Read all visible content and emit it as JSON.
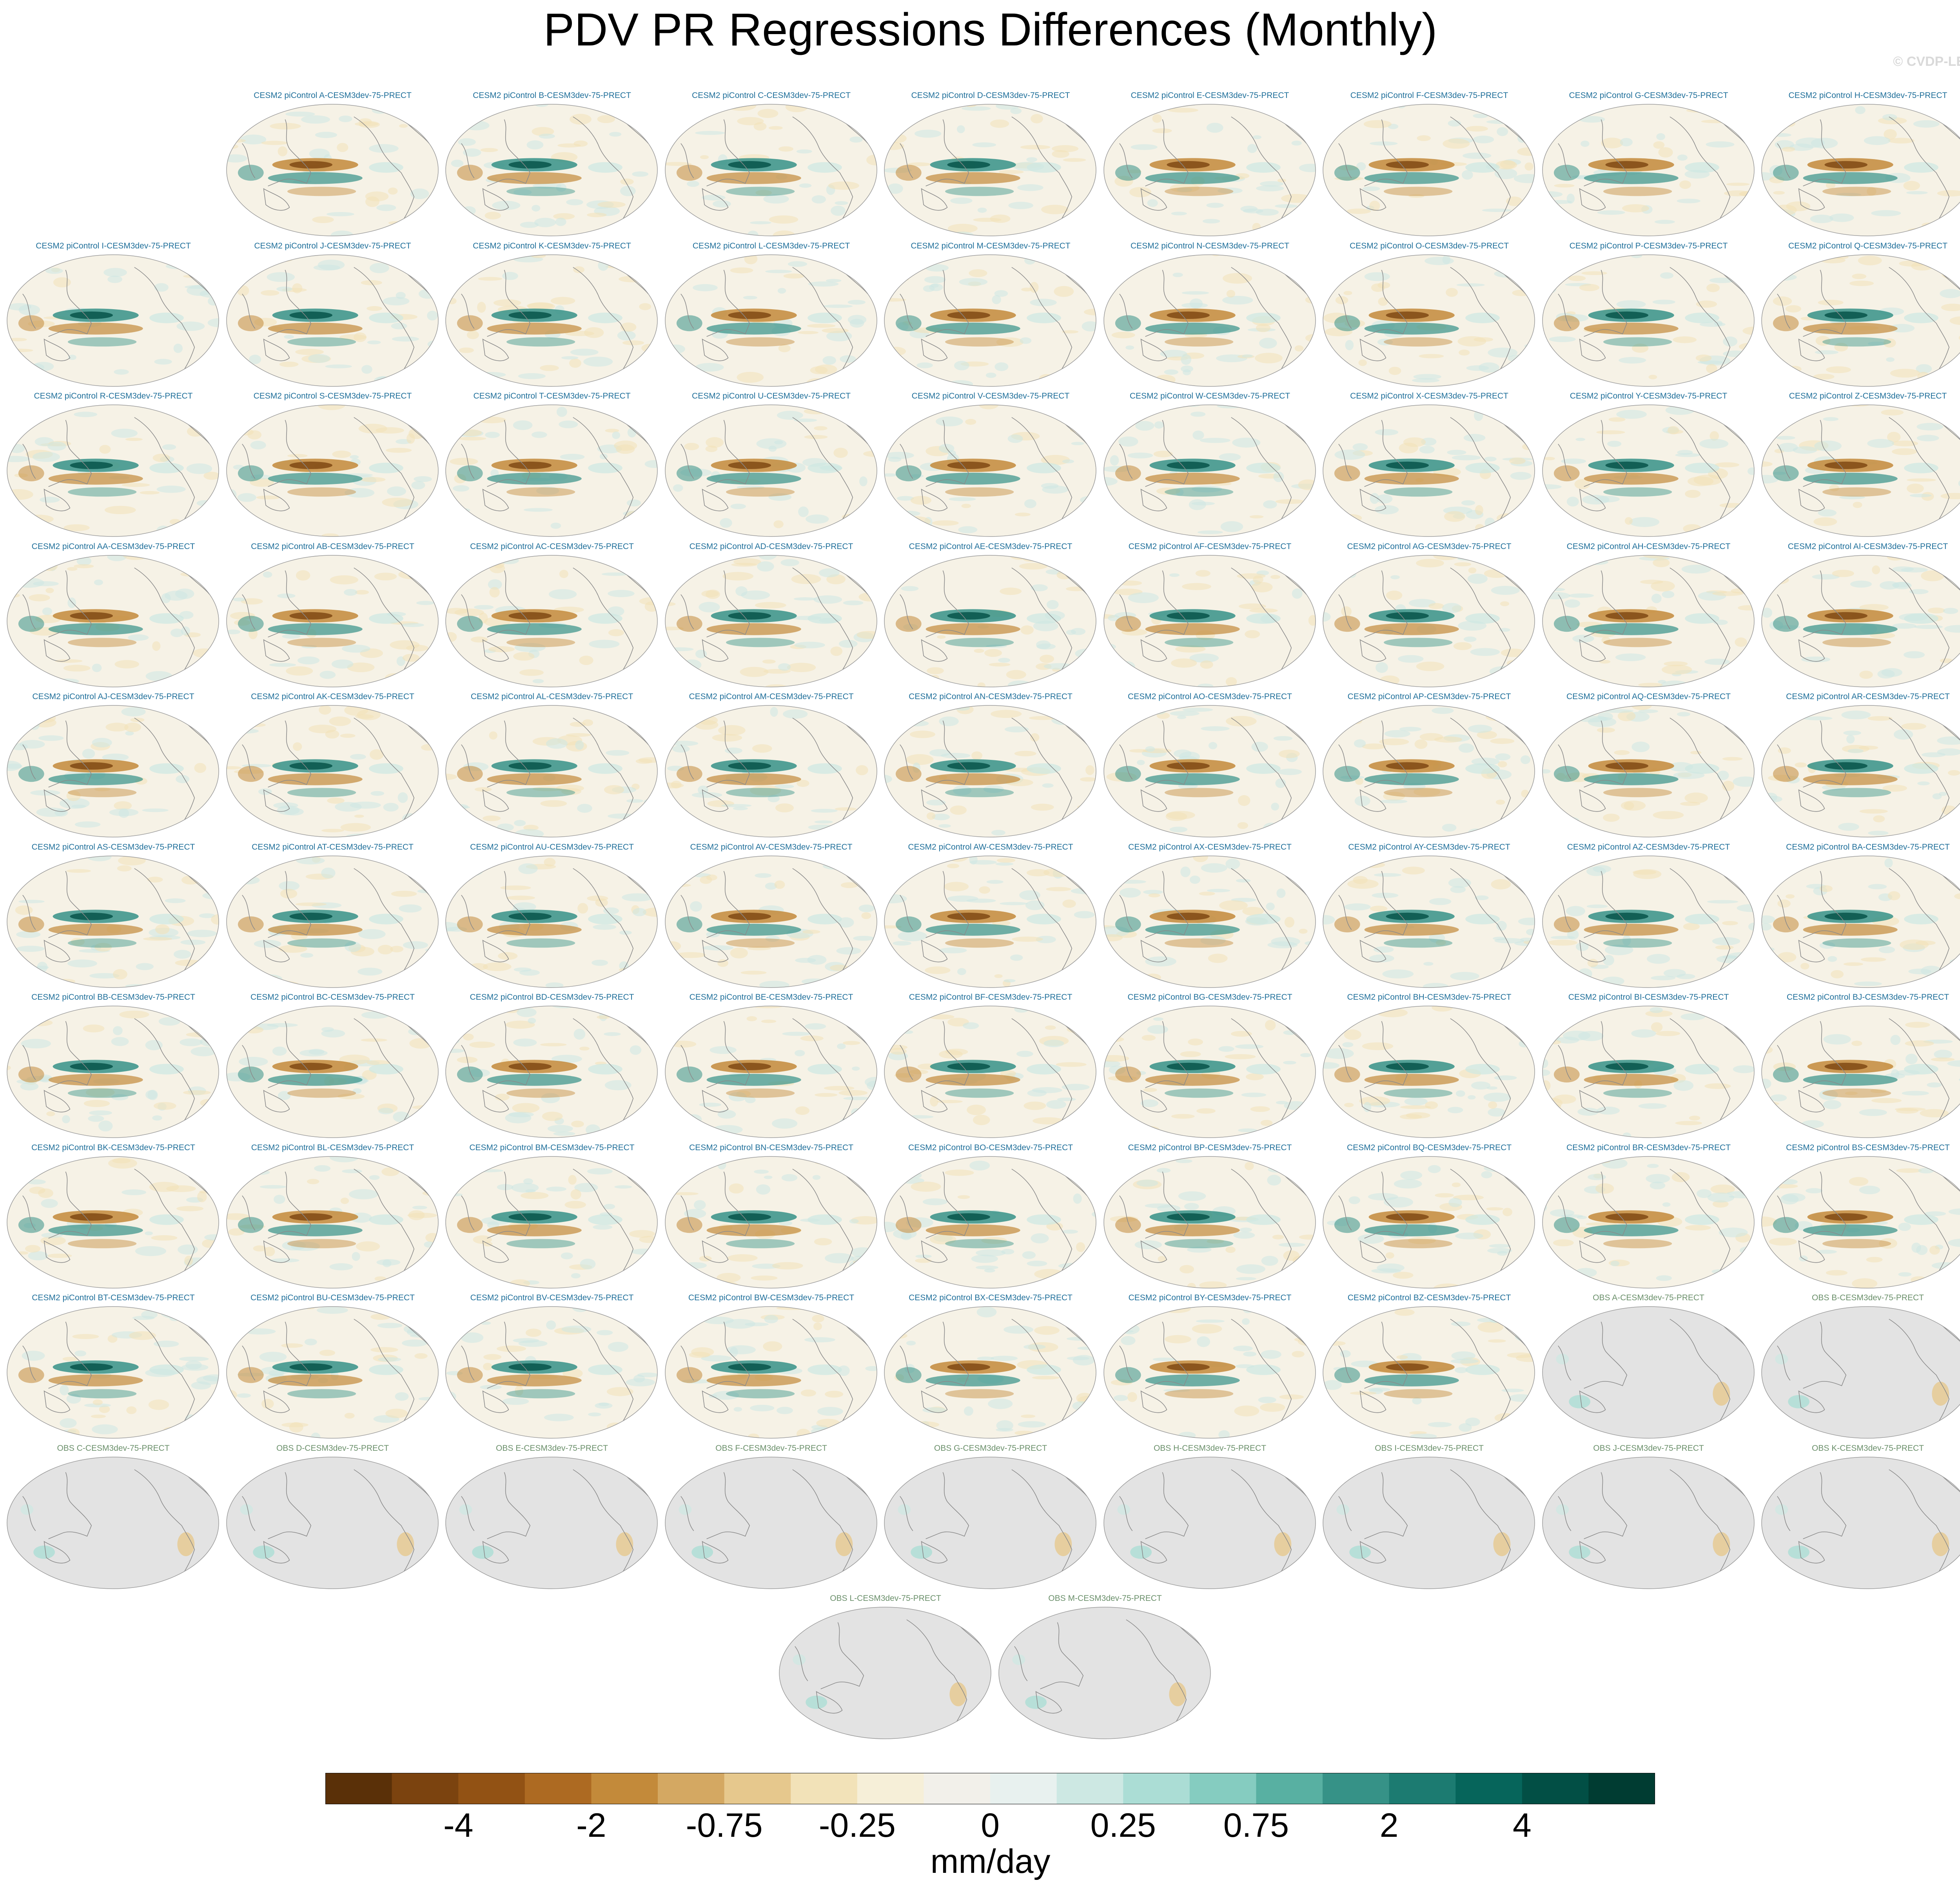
{
  "title": "PDV PR Regressions Differences (Monthly)",
  "watermark": "© CVDP-LE",
  "panels": [
    {
      "label": "CESM2 piControl A-CESM3dev-75-PRECT",
      "kind": "cesm"
    },
    {
      "label": "CESM2 piControl B-CESM3dev-75-PRECT",
      "kind": "cesm"
    },
    {
      "label": "CESM2 piControl C-CESM3dev-75-PRECT",
      "kind": "cesm"
    },
    {
      "label": "CESM2 piControl D-CESM3dev-75-PRECT",
      "kind": "cesm"
    },
    {
      "label": "CESM2 piControl E-CESM3dev-75-PRECT",
      "kind": "cesm"
    },
    {
      "label": "CESM2 piControl F-CESM3dev-75-PRECT",
      "kind": "cesm"
    },
    {
      "label": "CESM2 piControl G-CESM3dev-75-PRECT",
      "kind": "cesm"
    },
    {
      "label": "CESM2 piControl H-CESM3dev-75-PRECT",
      "kind": "cesm"
    },
    {
      "label": "CESM2 piControl I-CESM3dev-75-PRECT",
      "kind": "cesm"
    },
    {
      "label": "CESM2 piControl J-CESM3dev-75-PRECT",
      "kind": "cesm"
    },
    {
      "label": "CESM2 piControl K-CESM3dev-75-PRECT",
      "kind": "cesm"
    },
    {
      "label": "CESM2 piControl L-CESM3dev-75-PRECT",
      "kind": "cesm"
    },
    {
      "label": "CESM2 piControl M-CESM3dev-75-PRECT",
      "kind": "cesm"
    },
    {
      "label": "CESM2 piControl N-CESM3dev-75-PRECT",
      "kind": "cesm"
    },
    {
      "label": "CESM2 piControl O-CESM3dev-75-PRECT",
      "kind": "cesm"
    },
    {
      "label": "CESM2 piControl P-CESM3dev-75-PRECT",
      "kind": "cesm"
    },
    {
      "label": "CESM2 piControl Q-CESM3dev-75-PRECT",
      "kind": "cesm"
    },
    {
      "label": "CESM2 piControl R-CESM3dev-75-PRECT",
      "kind": "cesm"
    },
    {
      "label": "CESM2 piControl S-CESM3dev-75-PRECT",
      "kind": "cesm"
    },
    {
      "label": "CESM2 piControl T-CESM3dev-75-PRECT",
      "kind": "cesm"
    },
    {
      "label": "CESM2 piControl U-CESM3dev-75-PRECT",
      "kind": "cesm"
    },
    {
      "label": "CESM2 piControl V-CESM3dev-75-PRECT",
      "kind": "cesm"
    },
    {
      "label": "CESM2 piControl W-CESM3dev-75-PRECT",
      "kind": "cesm"
    },
    {
      "label": "CESM2 piControl X-CESM3dev-75-PRECT",
      "kind": "cesm"
    },
    {
      "label": "CESM2 piControl Y-CESM3dev-75-PRECT",
      "kind": "cesm"
    },
    {
      "label": "CESM2 piControl Z-CESM3dev-75-PRECT",
      "kind": "cesm"
    },
    {
      "label": "CESM2 piControl AA-CESM3dev-75-PRECT",
      "kind": "cesm"
    },
    {
      "label": "CESM2 piControl AB-CESM3dev-75-PRECT",
      "kind": "cesm"
    },
    {
      "label": "CESM2 piControl AC-CESM3dev-75-PRECT",
      "kind": "cesm"
    },
    {
      "label": "CESM2 piControl AD-CESM3dev-75-PRECT",
      "kind": "cesm"
    },
    {
      "label": "CESM2 piControl AE-CESM3dev-75-PRECT",
      "kind": "cesm"
    },
    {
      "label": "CESM2 piControl AF-CESM3dev-75-PRECT",
      "kind": "cesm"
    },
    {
      "label": "CESM2 piControl AG-CESM3dev-75-PRECT",
      "kind": "cesm"
    },
    {
      "label": "CESM2 piControl AH-CESM3dev-75-PRECT",
      "kind": "cesm"
    },
    {
      "label": "CESM2 piControl AI-CESM3dev-75-PRECT",
      "kind": "cesm"
    },
    {
      "label": "CESM2 piControl AJ-CESM3dev-75-PRECT",
      "kind": "cesm"
    },
    {
      "label": "CESM2 piControl AK-CESM3dev-75-PRECT",
      "kind": "cesm"
    },
    {
      "label": "CESM2 piControl AL-CESM3dev-75-PRECT",
      "kind": "cesm"
    },
    {
      "label": "CESM2 piControl AM-CESM3dev-75-PRECT",
      "kind": "cesm"
    },
    {
      "label": "CESM2 piControl AN-CESM3dev-75-PRECT",
      "kind": "cesm"
    },
    {
      "label": "CESM2 piControl AO-CESM3dev-75-PRECT",
      "kind": "cesm"
    },
    {
      "label": "CESM2 piControl AP-CESM3dev-75-PRECT",
      "kind": "cesm"
    },
    {
      "label": "CESM2 piControl AQ-CESM3dev-75-PRECT",
      "kind": "cesm"
    },
    {
      "label": "CESM2 piControl AR-CESM3dev-75-PRECT",
      "kind": "cesm"
    },
    {
      "label": "CESM2 piControl AS-CESM3dev-75-PRECT",
      "kind": "cesm"
    },
    {
      "label": "CESM2 piControl AT-CESM3dev-75-PRECT",
      "kind": "cesm"
    },
    {
      "label": "CESM2 piControl AU-CESM3dev-75-PRECT",
      "kind": "cesm"
    },
    {
      "label": "CESM2 piControl AV-CESM3dev-75-PRECT",
      "kind": "cesm"
    },
    {
      "label": "CESM2 piControl AW-CESM3dev-75-PRECT",
      "kind": "cesm"
    },
    {
      "label": "CESM2 piControl AX-CESM3dev-75-PRECT",
      "kind": "cesm"
    },
    {
      "label": "CESM2 piControl AY-CESM3dev-75-PRECT",
      "kind": "cesm"
    },
    {
      "label": "CESM2 piControl AZ-CESM3dev-75-PRECT",
      "kind": "cesm"
    },
    {
      "label": "CESM2 piControl BA-CESM3dev-75-PRECT",
      "kind": "cesm"
    },
    {
      "label": "CESM2 piControl BB-CESM3dev-75-PRECT",
      "kind": "cesm"
    },
    {
      "label": "CESM2 piControl BC-CESM3dev-75-PRECT",
      "kind": "cesm"
    },
    {
      "label": "CESM2 piControl BD-CESM3dev-75-PRECT",
      "kind": "cesm"
    },
    {
      "label": "CESM2 piControl BE-CESM3dev-75-PRECT",
      "kind": "cesm"
    },
    {
      "label": "CESM2 piControl BF-CESM3dev-75-PRECT",
      "kind": "cesm"
    },
    {
      "label": "CESM2 piControl BG-CESM3dev-75-PRECT",
      "kind": "cesm"
    },
    {
      "label": "CESM2 piControl BH-CESM3dev-75-PRECT",
      "kind": "cesm"
    },
    {
      "label": "CESM2 piControl BI-CESM3dev-75-PRECT",
      "kind": "cesm"
    },
    {
      "label": "CESM2 piControl BJ-CESM3dev-75-PRECT",
      "kind": "cesm"
    },
    {
      "label": "CESM2 piControl BK-CESM3dev-75-PRECT",
      "kind": "cesm"
    },
    {
      "label": "CESM2 piControl BL-CESM3dev-75-PRECT",
      "kind": "cesm"
    },
    {
      "label": "CESM2 piControl BM-CESM3dev-75-PRECT",
      "kind": "cesm"
    },
    {
      "label": "CESM2 piControl BN-CESM3dev-75-PRECT",
      "kind": "cesm"
    },
    {
      "label": "CESM2 piControl BO-CESM3dev-75-PRECT",
      "kind": "cesm"
    },
    {
      "label": "CESM2 piControl BP-CESM3dev-75-PRECT",
      "kind": "cesm"
    },
    {
      "label": "CESM2 piControl BQ-CESM3dev-75-PRECT",
      "kind": "cesm"
    },
    {
      "label": "CESM2 piControl BR-CESM3dev-75-PRECT",
      "kind": "cesm"
    },
    {
      "label": "CESM2 piControl BS-CESM3dev-75-PRECT",
      "kind": "cesm"
    },
    {
      "label": "CESM2 piControl BT-CESM3dev-75-PRECT",
      "kind": "cesm"
    },
    {
      "label": "CESM2 piControl BU-CESM3dev-75-PRECT",
      "kind": "cesm"
    },
    {
      "label": "CESM2 piControl BV-CESM3dev-75-PRECT",
      "kind": "cesm"
    },
    {
      "label": "CESM2 piControl BW-CESM3dev-75-PRECT",
      "kind": "cesm"
    },
    {
      "label": "CESM2 piControl BX-CESM3dev-75-PRECT",
      "kind": "cesm"
    },
    {
      "label": "CESM2 piControl BY-CESM3dev-75-PRECT",
      "kind": "cesm"
    },
    {
      "label": "CESM2 piControl BZ-CESM3dev-75-PRECT",
      "kind": "cesm"
    },
    {
      "label": "OBS A-CESM3dev-75-PRECT",
      "kind": "obs"
    },
    {
      "label": "OBS B-CESM3dev-75-PRECT",
      "kind": "obs"
    },
    {
      "label": "OBS C-CESM3dev-75-PRECT",
      "kind": "obs"
    },
    {
      "label": "OBS D-CESM3dev-75-PRECT",
      "kind": "obs"
    },
    {
      "label": "OBS E-CESM3dev-75-PRECT",
      "kind": "obs"
    },
    {
      "label": "OBS F-CESM3dev-75-PRECT",
      "kind": "obs"
    },
    {
      "label": "OBS G-CESM3dev-75-PRECT",
      "kind": "obs"
    },
    {
      "label": "OBS H-CESM3dev-75-PRECT",
      "kind": "obs"
    },
    {
      "label": "OBS I-CESM3dev-75-PRECT",
      "kind": "obs"
    },
    {
      "label": "OBS J-CESM3dev-75-PRECT",
      "kind": "obs"
    },
    {
      "label": "OBS K-CESM3dev-75-PRECT",
      "kind": "obs"
    },
    {
      "label": "OBS L-CESM3dev-75-PRECT",
      "kind": "obs"
    },
    {
      "label": "OBS M-CESM3dev-75-PRECT",
      "kind": "obs"
    }
  ],
  "colorbar": {
    "units": "mm/day",
    "tick_labels": [
      "-4",
      "-2",
      "-0.75",
      "-0.25",
      "0",
      "0.25",
      "0.75",
      "2",
      "4"
    ],
    "colors": [
      "#5a3008",
      "#7b430f",
      "#925214",
      "#ad6a22",
      "#c38a3a",
      "#d4a862",
      "#e6c88d",
      "#f2e2b8",
      "#f6efd8",
      "#f2f0ea",
      "#e8f1ef",
      "#cde8e3",
      "#abddd5",
      "#85ccc0",
      "#58b0a2",
      "#369287",
      "#1c7b71",
      "#06655b",
      "#024f45",
      "#003c32"
    ],
    "land_color": "#e3e3e3",
    "ocean_background": "#f6f2e6"
  }
}
